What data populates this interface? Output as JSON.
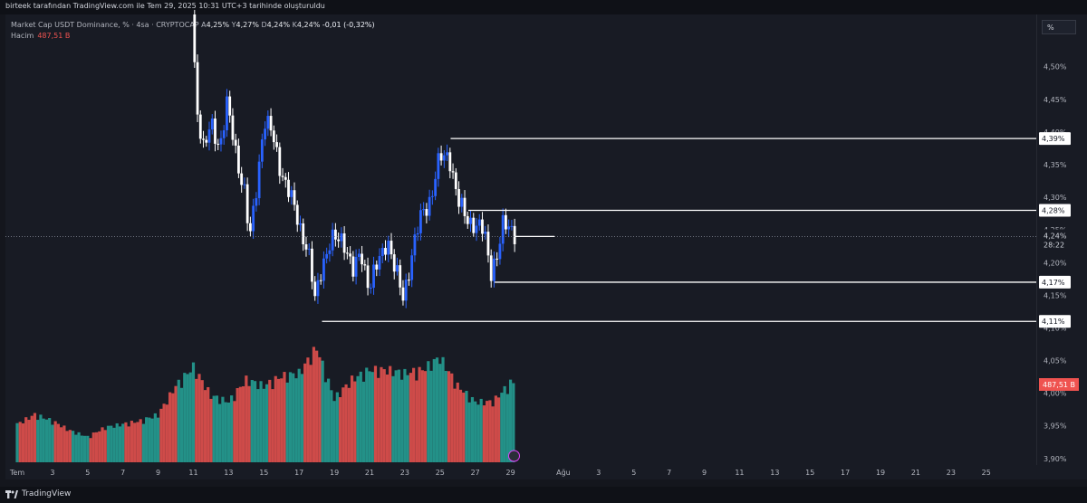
{
  "header": {
    "caption": "birteek tarafından TradingView.com ile Tem 29, 2025 10:31 UTC+3 tarihinde oluşturuldu"
  },
  "legend": {
    "symbol": "Market Cap USDT Dominance, % · 4sa · CRYPTOCAP",
    "open_label": "A",
    "open": "4,25%",
    "high_label": "Y",
    "high": "4,27%",
    "low_label": "D",
    "low": "4,24%",
    "close_label": "K",
    "close": "4,24%",
    "change": "-0,01 (-0,32%)"
  },
  "volume_legend": {
    "label": "Hacim",
    "value": "487,51 B"
  },
  "scale_button": "%",
  "footer": {
    "brand": "TradingView"
  },
  "colors": {
    "background": "#181b24",
    "up": "#2962ff",
    "down": "#ffffff",
    "vol_up": "#26a69a",
    "vol_down": "#ef5350",
    "level_line": "#ffffff"
  },
  "chart_data": {
    "type": "candlestick",
    "title": "Market Cap USDT Dominance, % · 4sa · CRYPTOCAP",
    "y_unit": "%",
    "ylim": [
      3.89,
      4.58
    ],
    "y_ticks": [
      {
        "v": 4.5,
        "label": "4,50%"
      },
      {
        "v": 4.45,
        "label": "4,45%"
      },
      {
        "v": 4.4,
        "label": "4,40%"
      },
      {
        "v": 4.35,
        "label": "4,35%"
      },
      {
        "v": 4.3,
        "label": "4,30%"
      },
      {
        "v": 4.25,
        "label": "4,25%"
      },
      {
        "v": 4.2,
        "label": "4,20%"
      },
      {
        "v": 4.15,
        "label": "4,15%"
      },
      {
        "v": 4.1,
        "label": "4,10%"
      },
      {
        "v": 4.05,
        "label": "4,05%"
      },
      {
        "v": 4.0,
        "label": "4,00%"
      },
      {
        "v": 3.95,
        "label": "3,95%"
      },
      {
        "v": 3.9,
        "label": "3,90%"
      }
    ],
    "x_axis": {
      "first_date": "Tem 1",
      "last_date": "Ağu 26",
      "labels": [
        {
          "day": 1,
          "label": "Tem"
        },
        {
          "day": 3,
          "label": "3"
        },
        {
          "day": 5,
          "label": "5"
        },
        {
          "day": 7,
          "label": "7"
        },
        {
          "day": 9,
          "label": "9"
        },
        {
          "day": 11,
          "label": "11"
        },
        {
          "day": 13,
          "label": "13"
        },
        {
          "day": 15,
          "label": "15"
        },
        {
          "day": 17,
          "label": "17"
        },
        {
          "day": 19,
          "label": "19"
        },
        {
          "day": 21,
          "label": "21"
        },
        {
          "day": 23,
          "label": "23"
        },
        {
          "day": 25,
          "label": "25"
        },
        {
          "day": 27,
          "label": "27"
        },
        {
          "day": 29,
          "label": "29"
        },
        {
          "day": 32,
          "label": "Ağu"
        },
        {
          "day": 34,
          "label": "3"
        },
        {
          "day": 36,
          "label": "5"
        },
        {
          "day": 38,
          "label": "7"
        },
        {
          "day": 40,
          "label": "9"
        },
        {
          "day": 42,
          "label": "11"
        },
        {
          "day": 44,
          "label": "13"
        },
        {
          "day": 46,
          "label": "15"
        },
        {
          "day": 48,
          "label": "17"
        },
        {
          "day": 50,
          "label": "19"
        },
        {
          "day": 52,
          "label": "21"
        },
        {
          "day": 54,
          "label": "23"
        },
        {
          "day": 56,
          "label": "25"
        }
      ]
    },
    "price_path": [
      {
        "day": 10.9,
        "price": 4.58
      },
      {
        "day": 11.2,
        "price": 4.44
      },
      {
        "day": 11.6,
        "price": 4.37
      },
      {
        "day": 12.0,
        "price": 4.41
      },
      {
        "day": 12.5,
        "price": 4.38
      },
      {
        "day": 12.9,
        "price": 4.44
      },
      {
        "day": 13.4,
        "price": 4.37
      },
      {
        "day": 13.9,
        "price": 4.31
      },
      {
        "day": 14.2,
        "price": 4.23
      },
      {
        "day": 14.6,
        "price": 4.32
      },
      {
        "day": 15.0,
        "price": 4.42
      },
      {
        "day": 15.4,
        "price": 4.4
      },
      {
        "day": 15.9,
        "price": 4.35
      },
      {
        "day": 16.5,
        "price": 4.3
      },
      {
        "day": 17.0,
        "price": 4.26
      },
      {
        "day": 17.5,
        "price": 4.22
      },
      {
        "day": 17.9,
        "price": 4.14
      },
      {
        "day": 18.3,
        "price": 4.2
      },
      {
        "day": 18.8,
        "price": 4.23
      },
      {
        "day": 19.5,
        "price": 4.24
      },
      {
        "day": 20.1,
        "price": 4.18
      },
      {
        "day": 20.5,
        "price": 4.22
      },
      {
        "day": 21.0,
        "price": 4.16
      },
      {
        "day": 21.5,
        "price": 4.2
      },
      {
        "day": 22.0,
        "price": 4.24
      },
      {
        "day": 22.4,
        "price": 4.19
      },
      {
        "day": 22.9,
        "price": 4.15
      },
      {
        "day": 23.4,
        "price": 4.21
      },
      {
        "day": 24.0,
        "price": 4.28
      },
      {
        "day": 24.5,
        "price": 4.3
      },
      {
        "day": 25.0,
        "price": 4.36
      },
      {
        "day": 25.5,
        "price": 4.37
      },
      {
        "day": 26.0,
        "price": 4.29
      },
      {
        "day": 26.6,
        "price": 4.27
      },
      {
        "day": 27.1,
        "price": 4.25
      },
      {
        "day": 27.5,
        "price": 4.25
      },
      {
        "day": 27.9,
        "price": 4.19
      },
      {
        "day": 28.3,
        "price": 4.21
      },
      {
        "day": 28.6,
        "price": 4.26
      },
      {
        "day": 29.0,
        "price": 4.26
      },
      {
        "day": 29.3,
        "price": 4.24
      }
    ],
    "volume_path": [
      {
        "day": 1.0,
        "v": 1.2
      },
      {
        "day": 2.0,
        "v": 1.5
      },
      {
        "day": 3.0,
        "v": 1.3
      },
      {
        "day": 4.0,
        "v": 1.0
      },
      {
        "day": 5.0,
        "v": 0.8
      },
      {
        "day": 6.0,
        "v": 1.1
      },
      {
        "day": 7.0,
        "v": 1.2
      },
      {
        "day": 8.0,
        "v": 1.3
      },
      {
        "day": 9.0,
        "v": 1.5
      },
      {
        "day": 10.0,
        "v": 2.4
      },
      {
        "day": 11.0,
        "v": 3.0
      },
      {
        "day": 12.0,
        "v": 2.1
      },
      {
        "day": 13.0,
        "v": 1.9
      },
      {
        "day": 14.0,
        "v": 2.6
      },
      {
        "day": 15.0,
        "v": 2.4
      },
      {
        "day": 16.0,
        "v": 2.7
      },
      {
        "day": 17.0,
        "v": 2.8
      },
      {
        "day": 18.0,
        "v": 3.6
      },
      {
        "day": 19.0,
        "v": 2.0
      },
      {
        "day": 20.0,
        "v": 2.6
      },
      {
        "day": 21.0,
        "v": 2.9
      },
      {
        "day": 22.0,
        "v": 2.9
      },
      {
        "day": 23.0,
        "v": 2.8
      },
      {
        "day": 24.0,
        "v": 2.9
      },
      {
        "day": 25.0,
        "v": 3.3
      },
      {
        "day": 26.0,
        "v": 2.4
      },
      {
        "day": 27.0,
        "v": 1.9
      },
      {
        "day": 28.0,
        "v": 1.9
      },
      {
        "day": 29.0,
        "v": 2.5
      }
    ],
    "levels": [
      {
        "price": 4.39,
        "label": "4,39%",
        "from_day": 25.6
      },
      {
        "price": 4.28,
        "label": "4,28%",
        "from_day": 26.6
      },
      {
        "price": 4.17,
        "label": "4,17%",
        "from_day": 28.1
      },
      {
        "price": 4.11,
        "label": "4,11%",
        "from_day": 18.3
      }
    ],
    "last_price": {
      "price": 4.24,
      "label": "4,24%",
      "countdown": "28:22"
    },
    "last_volume_label": "487,51 B"
  }
}
